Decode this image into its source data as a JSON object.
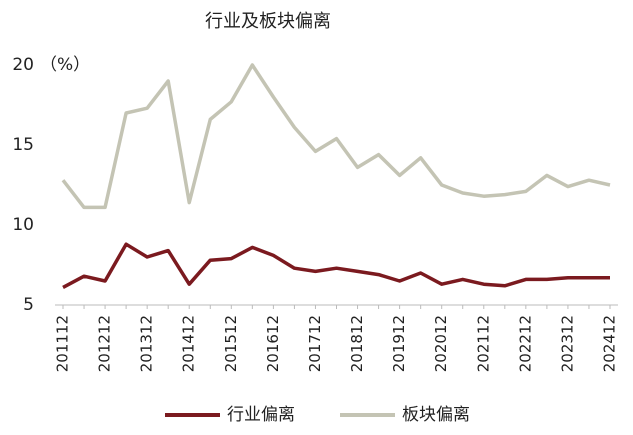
{
  "chart_data": {
    "type": "line",
    "title": "行业及板块偏离",
    "y_unit_label": "（%）",
    "categories": [
      "201112",
      null,
      "201212",
      null,
      "201312",
      null,
      "201412",
      null,
      "201512",
      null,
      "201612",
      null,
      "201712",
      null,
      "201812",
      null,
      "201912",
      null,
      "202012",
      null,
      "202112",
      null,
      "202212",
      null,
      "202312",
      null,
      "202412"
    ],
    "series": [
      {
        "name": "行业偏离",
        "color": "#7b1a1f",
        "values": [
          6.1,
          6.8,
          6.5,
          8.8,
          8.0,
          8.4,
          6.3,
          7.8,
          7.9,
          8.6,
          8.1,
          7.3,
          7.1,
          7.3,
          7.1,
          6.9,
          6.5,
          7.0,
          6.3,
          6.6,
          6.3,
          6.2,
          6.6,
          6.6,
          6.7,
          6.7,
          6.7
        ]
      },
      {
        "name": "板块偏离",
        "color": "#c4c4b4",
        "values": [
          12.8,
          11.1,
          11.1,
          17.0,
          17.3,
          19.0,
          11.4,
          16.6,
          17.7,
          20.0,
          18.0,
          16.1,
          14.6,
          15.4,
          13.6,
          14.4,
          13.1,
          14.2,
          12.5,
          12.0,
          11.8,
          11.9,
          12.1,
          13.1,
          12.4,
          12.8,
          12.5
        ]
      }
    ],
    "ylim": [
      5,
      20
    ],
    "yticks": [
      5,
      10,
      15,
      20
    ],
    "grid": false
  }
}
